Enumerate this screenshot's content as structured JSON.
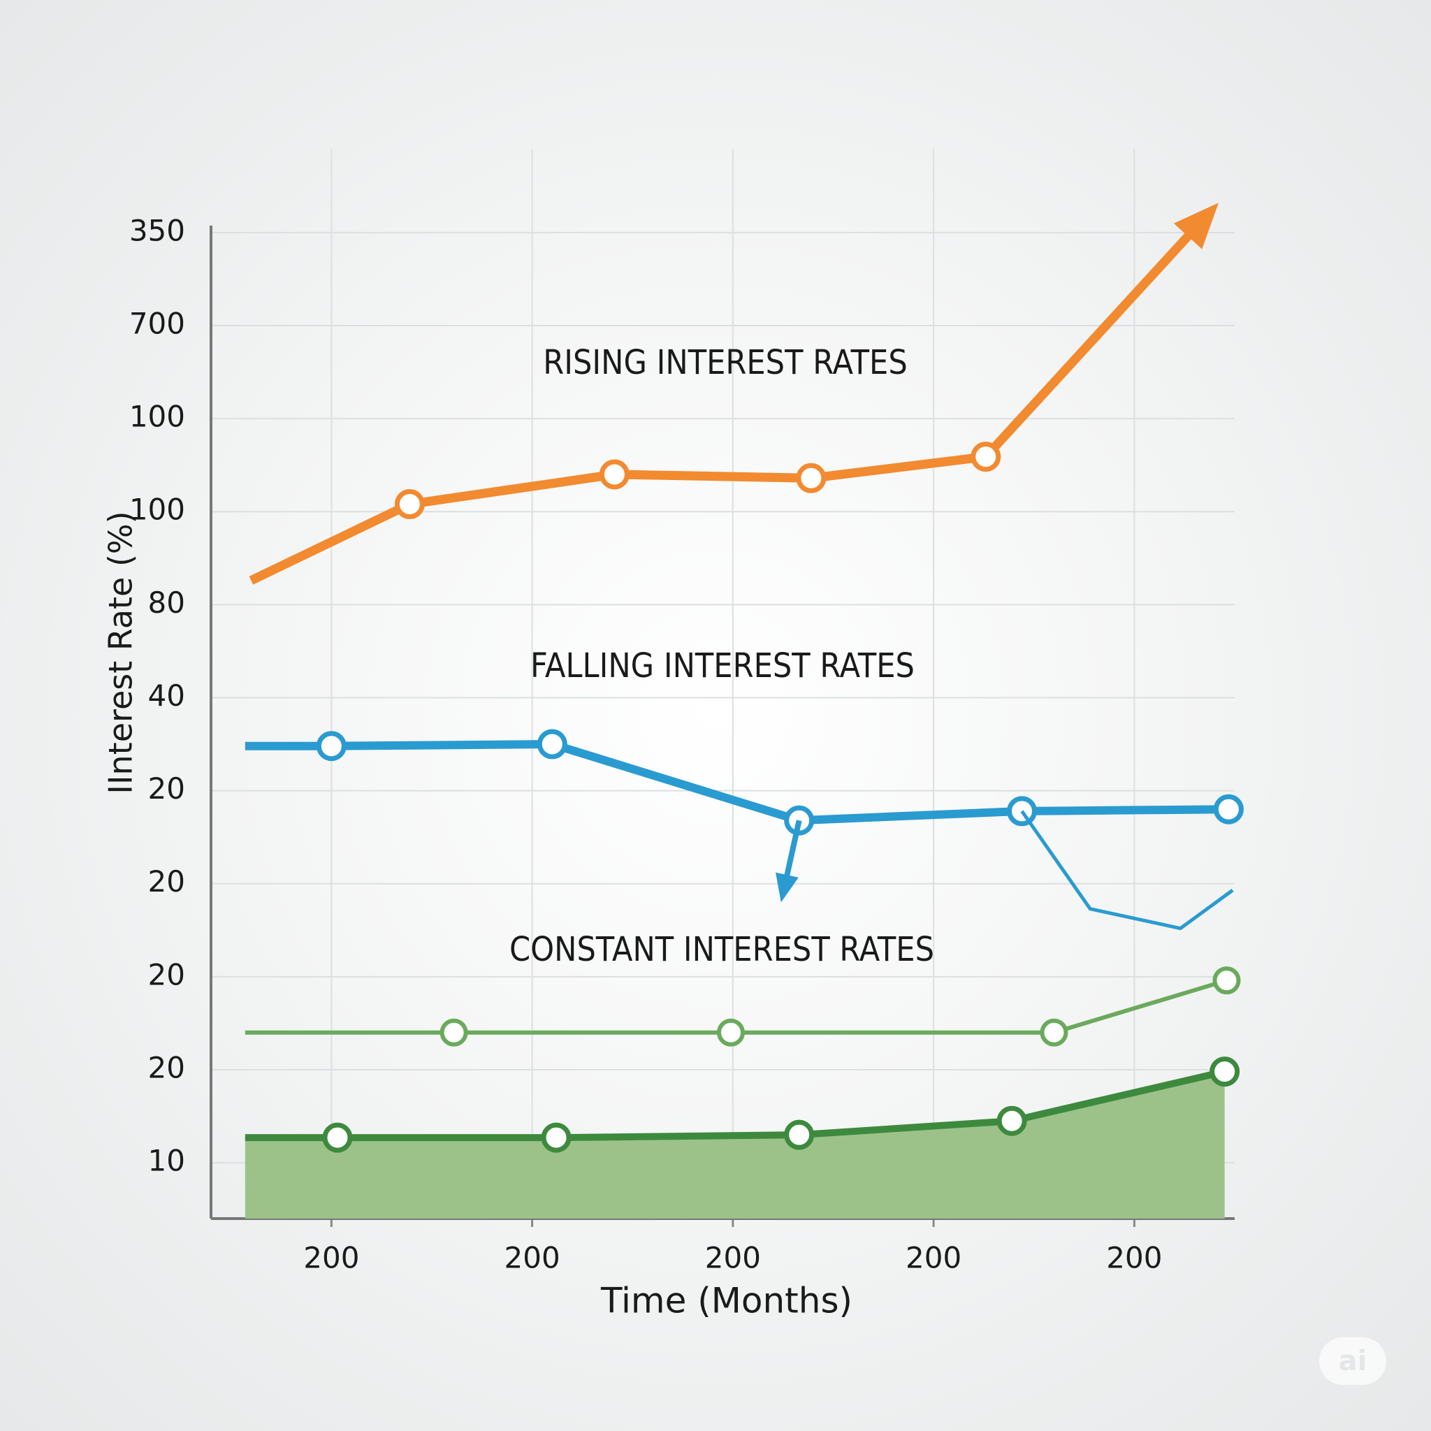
{
  "chart_data": {
    "type": "line",
    "annotations": [
      {
        "text": "RISING INTEREST RATES"
      },
      {
        "text": "FALLING INTEREST RATES"
      },
      {
        "text": "CONSTANT INTEREST RATES"
      }
    ],
    "ylabel": "IInterest Rate  (%)",
    "xlabel": "Time (Months)",
    "xlim": [
      0.4,
      5.5
    ],
    "xticks": [
      {
        "value": 1,
        "label": "200"
      },
      {
        "value": 2,
        "label": "200"
      },
      {
        "value": 3,
        "label": "200"
      },
      {
        "value": 4,
        "label": "200"
      },
      {
        "value": 5,
        "label": "200"
      }
    ],
    "ylim": [
      0.4,
      11.9
    ],
    "yticks": [
      {
        "value": 1,
        "label": "10"
      },
      {
        "value": 2,
        "label": "20"
      },
      {
        "value": 3,
        "label": "20"
      },
      {
        "value": 4,
        "label": "20"
      },
      {
        "value": 5,
        "label": "20"
      },
      {
        "value": 6,
        "label": "40"
      },
      {
        "value": 7,
        "label": "80"
      },
      {
        "value": 8,
        "label": "100"
      },
      {
        "value": 9,
        "label": "100"
      },
      {
        "value": 10,
        "label": "700"
      },
      {
        "value": 11,
        "label": "350"
      }
    ],
    "grid": true,
    "series": [
      {
        "color": "#f28a30",
        "style": "line",
        "width": 13,
        "arrow": true,
        "x": [
          0.6,
          1.39,
          2.41,
          3.39,
          4.26,
          5.42
        ],
        "values": [
          7.26,
          8.08,
          8.4,
          8.36,
          8.59,
          11.32
        ],
        "markers": [
          false,
          true,
          true,
          true,
          true,
          false
        ]
      },
      {
        "color": "#2a9bd0",
        "style": "line",
        "width": 12,
        "arrow": false,
        "x": [
          0.57,
          1,
          2.1,
          3.33,
          4.44,
          5.47
        ],
        "values": [
          5.48,
          5.48,
          5.5,
          4.68,
          4.78,
          4.8
        ],
        "markers": [
          false,
          true,
          true,
          true,
          true,
          true
        ]
      },
      {
        "color": "#2a9bd0",
        "style": "line",
        "width": 8,
        "arrow": true,
        "x": [
          3.33,
          3.24
        ],
        "values": [
          4.68,
          3.8
        ],
        "markers": [
          false,
          false
        ]
      },
      {
        "color": "#2a9bd0",
        "style": "line",
        "width": 5,
        "arrow": false,
        "x": [
          4.44,
          4.78,
          5.23,
          5.49
        ],
        "values": [
          4.78,
          3.73,
          3.52,
          3.93
        ],
        "markers": [
          false,
          false,
          false,
          false
        ]
      },
      {
        "color": "#6aaa5c",
        "style": "line",
        "width": 6,
        "arrow": false,
        "x": [
          0.57,
          1.61,
          2.99,
          4.6,
          5.46
        ],
        "values": [
          2.4,
          2.4,
          2.4,
          2.4,
          2.96
        ],
        "markers": [
          false,
          true,
          true,
          true,
          true
        ]
      },
      {
        "color": "#3d8a3e",
        "fill": "#9cc28a",
        "style": "area",
        "width": 10,
        "arrow": false,
        "x": [
          0.57,
          1.03,
          2.12,
          3.33,
          4.39,
          5.45
        ],
        "values": [
          1.27,
          1.27,
          1.27,
          1.3,
          1.45,
          1.98
        ],
        "markers": [
          false,
          true,
          true,
          true,
          true,
          true
        ]
      }
    ]
  },
  "watermark": "ai"
}
